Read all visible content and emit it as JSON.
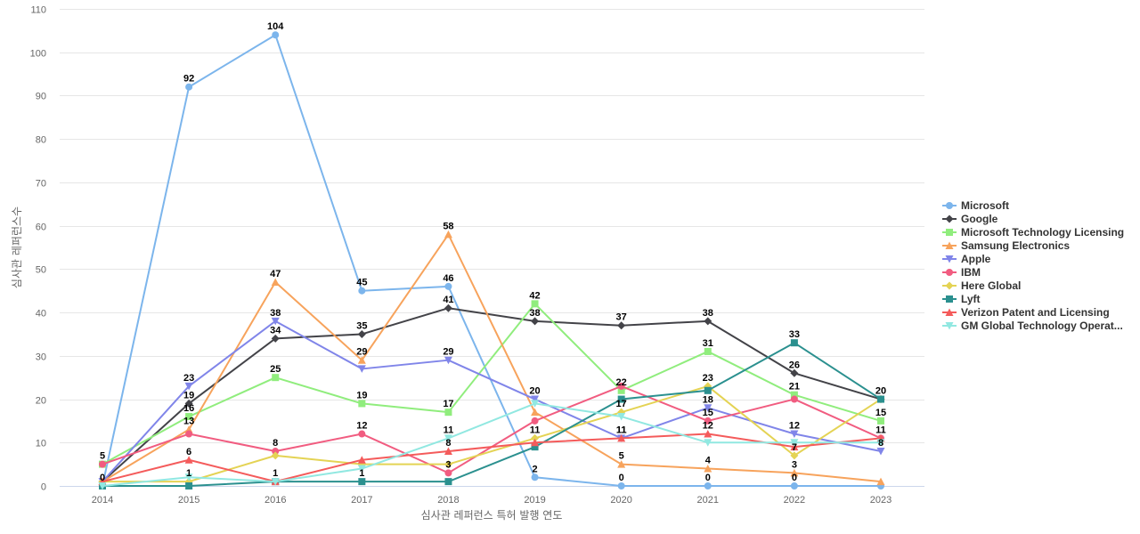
{
  "chart_data": {
    "type": "line",
    "title": "",
    "xlabel": "심사관 레퍼런스 특허 발행 연도",
    "ylabel": "심사관 레퍼런스수",
    "ylim": [
      0,
      110
    ],
    "yticks": [
      0,
      10,
      20,
      30,
      40,
      50,
      60,
      70,
      80,
      90,
      100,
      110
    ],
    "grid": true,
    "legend_position": "right",
    "categories": [
      "2014",
      "2015",
      "2016",
      "2017",
      "2018",
      "2019",
      "2020",
      "2021",
      "2022",
      "2023"
    ],
    "series": [
      {
        "name": "Microsoft",
        "color": "#7cb5ec",
        "marker": "circle",
        "values": [
          0,
          92,
          104,
          45,
          46,
          2,
          0,
          0,
          0,
          0
        ],
        "labeled": [
          true,
          true,
          true,
          true,
          true,
          true,
          true,
          true,
          true,
          false
        ]
      },
      {
        "name": "Google",
        "color": "#434348",
        "marker": "diamond",
        "values": [
          1,
          19,
          34,
          35,
          41,
          38,
          37,
          38,
          26,
          20
        ],
        "labeled": [
          false,
          true,
          true,
          true,
          true,
          true,
          true,
          true,
          true,
          true
        ]
      },
      {
        "name": "Microsoft Technology Licensing",
        "color": "#90ed7d",
        "marker": "square",
        "values": [
          5,
          16,
          25,
          19,
          17,
          42,
          22,
          31,
          21,
          15
        ],
        "labeled": [
          true,
          true,
          true,
          true,
          true,
          true,
          true,
          true,
          true,
          true
        ]
      },
      {
        "name": "Samsung Electronics",
        "color": "#f7a35c",
        "marker": "triangle",
        "values": [
          1,
          13,
          47,
          29,
          58,
          17,
          5,
          4,
          3,
          1
        ],
        "labeled": [
          false,
          true,
          true,
          true,
          true,
          false,
          true,
          true,
          true,
          false
        ]
      },
      {
        "name": "Apple",
        "color": "#8085e9",
        "marker": "triangle-down",
        "values": [
          1,
          23,
          38,
          27,
          29,
          20,
          11,
          18,
          12,
          8
        ],
        "labeled": [
          false,
          true,
          true,
          false,
          true,
          true,
          true,
          true,
          true,
          true
        ]
      },
      {
        "name": "IBM",
        "color": "#f15c80",
        "marker": "circle",
        "values": [
          5,
          12,
          8,
          12,
          3,
          15,
          23,
          15,
          20,
          11
        ],
        "labeled": [
          false,
          false,
          true,
          true,
          true,
          false,
          false,
          true,
          false,
          true
        ]
      },
      {
        "name": "Here Global",
        "color": "#e4d354",
        "marker": "diamond",
        "values": [
          1,
          1,
          7,
          5,
          5,
          11,
          17,
          23,
          7,
          20
        ],
        "labeled": [
          false,
          true,
          false,
          false,
          false,
          true,
          true,
          true,
          true,
          false
        ]
      },
      {
        "name": "Lyft",
        "color": "#2b908f",
        "marker": "square",
        "values": [
          0,
          0,
          1,
          1,
          1,
          9,
          20,
          22,
          33,
          20
        ],
        "labeled": [
          false,
          false,
          true,
          true,
          false,
          false,
          false,
          false,
          true,
          false
        ]
      },
      {
        "name": "Verizon Patent and Licensing",
        "color": "#f45b5b",
        "marker": "triangle",
        "values": [
          1,
          6,
          1,
          6,
          8,
          10,
          11,
          12,
          9,
          11
        ],
        "labeled": [
          false,
          true,
          false,
          false,
          true,
          false,
          true,
          true,
          false,
          false
        ]
      },
      {
        "name": "GM Global Technology Operat...",
        "color": "#91e8e1",
        "marker": "triangle-down",
        "values": [
          0,
          2,
          1,
          4,
          11,
          19,
          16,
          10,
          10,
          10
        ],
        "labeled": [
          false,
          false,
          false,
          false,
          true,
          false,
          false,
          false,
          false,
          false
        ]
      }
    ]
  }
}
